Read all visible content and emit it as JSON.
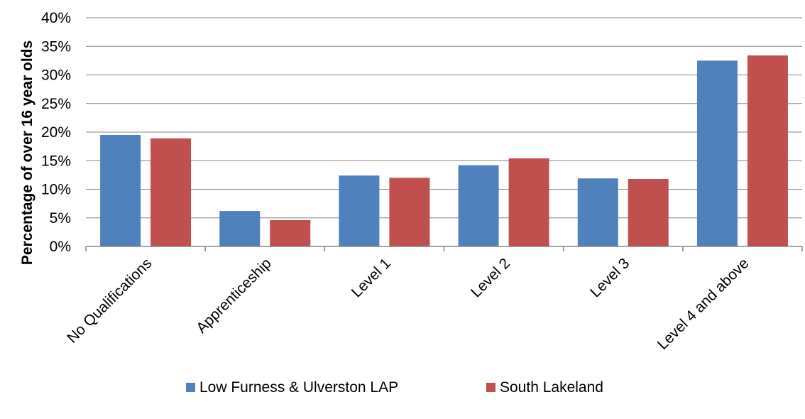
{
  "chart_data": {
    "type": "bar",
    "title": "",
    "xlabel": "",
    "ylabel": "Percentage of over 16 year olds",
    "ylim": [
      0,
      40
    ],
    "ytick_step": 5,
    "ytick_format": "percent",
    "grid": true,
    "legend_position": "bottom",
    "categories": [
      "No Qualifications",
      "Apprenticeship",
      "Level 1",
      "Level 2",
      "Level 3",
      "Level 4 and above"
    ],
    "series": [
      {
        "name": "Low Furness & Ulverston LAP",
        "color": "#4f81bd",
        "values": [
          19.5,
          6.2,
          12.4,
          14.2,
          11.9,
          32.5
        ]
      },
      {
        "name": "South Lakeland",
        "color": "#c0504d",
        "values": [
          18.9,
          4.6,
          12.0,
          15.4,
          11.8,
          33.4
        ]
      }
    ]
  }
}
